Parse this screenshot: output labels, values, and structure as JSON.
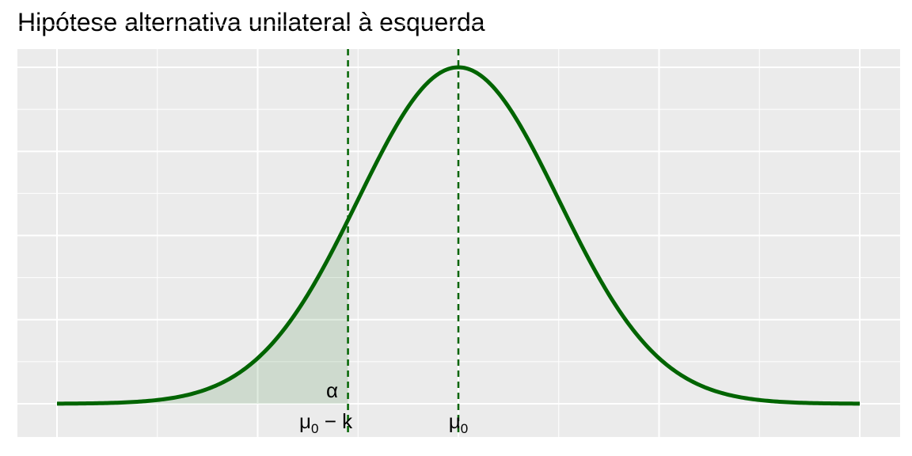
{
  "chart_data": {
    "type": "line",
    "title": "Hipótese alternativa unilateral à esquerda",
    "xlabel": "",
    "ylabel": "",
    "xlim": [
      -4,
      4
    ],
    "ylim": [
      0,
      0.4
    ],
    "distribution": "normal",
    "series": [
      {
        "x": [
          -4,
          -3.5,
          -3,
          -2.5,
          -2,
          -1.5,
          -1,
          -0.5,
          0,
          0.5,
          1,
          1.5,
          2,
          2.5,
          3,
          3.5,
          4
        ],
        "y": [
          0.0001,
          0.0009,
          0.0044,
          0.0175,
          0.054,
          0.1295,
          0.242,
          0.3521,
          0.3989,
          0.3521,
          0.242,
          0.1295,
          0.054,
          0.0175,
          0.0044,
          0.0009,
          0.0001
        ],
        "color": "#006400"
      }
    ],
    "shaded_region": {
      "from": -4,
      "to": -1.1,
      "label": "α",
      "color": "#006400"
    },
    "vlines": [
      {
        "x": -1.1,
        "label": "μ0 − k",
        "style": "dashed",
        "color": "#006400"
      },
      {
        "x": 0,
        "label": "μ0",
        "style": "dashed",
        "color": "#006400"
      }
    ],
    "grid": true,
    "background": "#EBEBEB"
  }
}
